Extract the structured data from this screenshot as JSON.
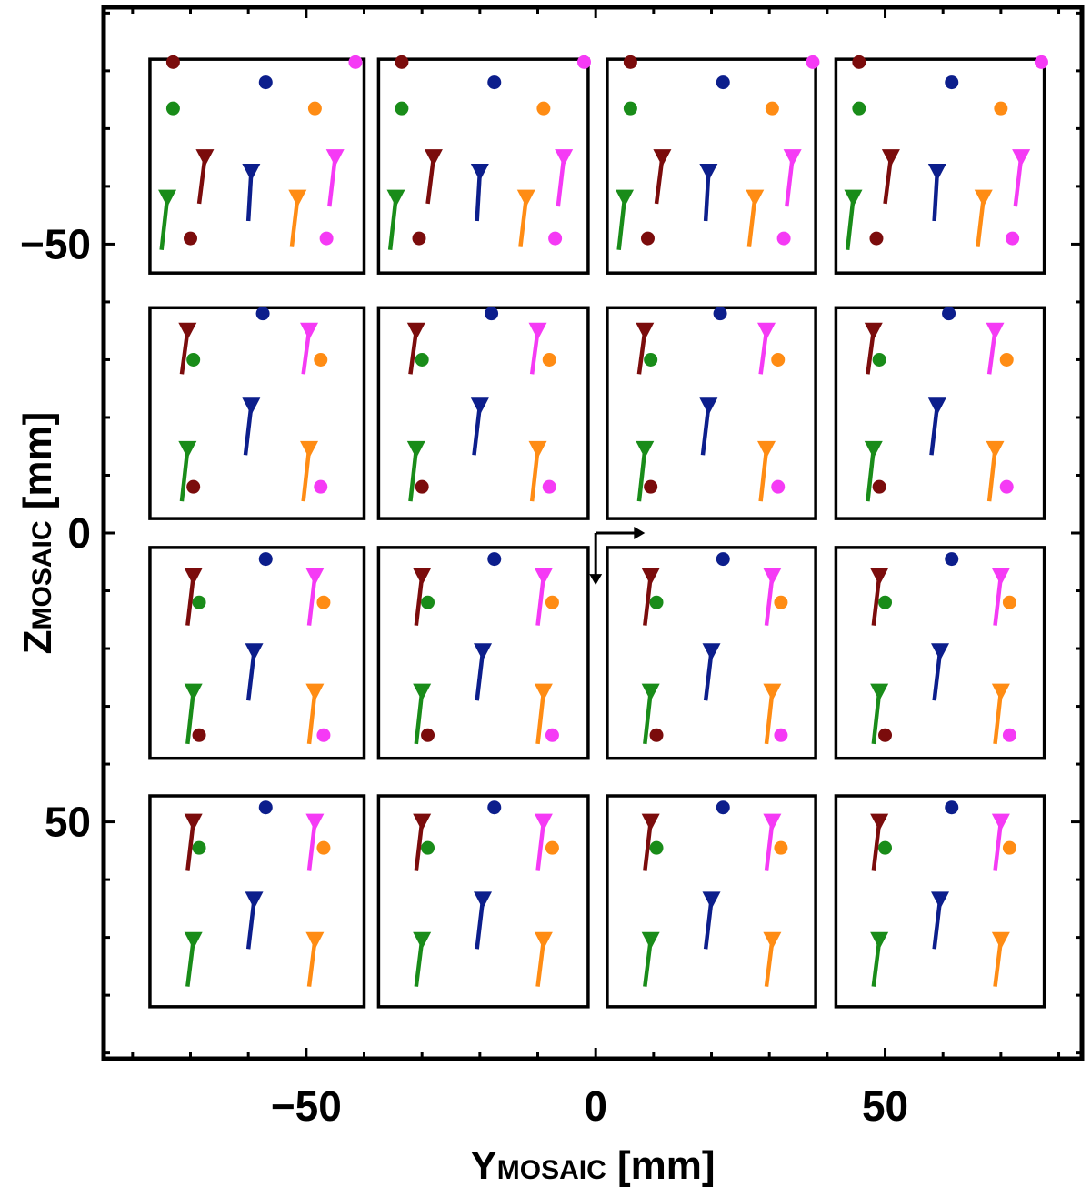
{
  "chart_data": {
    "type": "scatter",
    "title": "",
    "xlabel": {
      "main": "Y",
      "sub": "MOSAIC",
      "unit": " [mm]"
    },
    "ylabel": {
      "main": "Z",
      "sub": "MOSAIC",
      "unit": " [mm]"
    },
    "xlim": [
      -85,
      84
    ],
    "ylim": [
      -91,
      91
    ],
    "y_inverted": true,
    "grid": false,
    "legend": "none",
    "xticks": [
      {
        "value": -50,
        "label": "−50"
      },
      {
        "value": 0,
        "label": "0"
      },
      {
        "value": 50,
        "label": "50"
      }
    ],
    "yticks": [
      {
        "value": -50,
        "label": "−50"
      },
      {
        "value": 0,
        "label": "0"
      },
      {
        "value": 50,
        "label": "50"
      }
    ],
    "colors": {
      "c1": "#7b0c0c",
      "c2": "#0c1e8c",
      "c3": "#f53af5",
      "c4": "#198c19",
      "c5": "#ff8c14"
    },
    "origin_axes": {
      "y": 0,
      "z": 0,
      "arrow_y_length": 8.5,
      "arrow_z_length": 9
    },
    "tiles": {
      "columns": [
        [
          -77,
          -40
        ],
        [
          -37.5,
          -1.3
        ],
        [
          2,
          38
        ],
        [
          41.5,
          77.5
        ]
      ],
      "rows": [
        [
          -82,
          -45
        ],
        [
          -39,
          -2.5
        ],
        [
          2.5,
          39
        ],
        [
          45.5,
          82
        ]
      ]
    },
    "row_markers": [
      {
        "row": 0,
        "dots": [
          [
            4,
            -81.5,
            "c1"
          ],
          [
            20,
            -78,
            "c2"
          ],
          [
            35.5,
            -81.5,
            "c3"
          ],
          [
            4,
            -73.5,
            "c4"
          ],
          [
            28.5,
            -73.5,
            "c5"
          ],
          [
            7,
            -51,
            "c1"
          ],
          [
            30.5,
            -51,
            "c3"
          ]
        ],
        "pins": [
          [
            9.5,
            -65,
            8.5,
            -57,
            "c1"
          ],
          [
            17.5,
            -62.5,
            17,
            -54,
            "c2"
          ],
          [
            32,
            -65,
            31,
            -56.5,
            "c3"
          ],
          [
            3,
            -58,
            2,
            -49,
            "c4"
          ],
          [
            25.5,
            -58,
            24.5,
            -49.5,
            "c5"
          ]
        ]
      },
      {
        "row": 1,
        "dots": [
          [
            19.5,
            -38,
            "c2"
          ],
          [
            7.5,
            -30,
            "c4"
          ],
          [
            29.5,
            -30,
            "c5"
          ],
          [
            7.5,
            -8,
            "c1"
          ],
          [
            29.5,
            -8,
            "c3"
          ]
        ],
        "pins": [
          [
            6.5,
            -35,
            5.5,
            -27.5,
            "c1"
          ],
          [
            27.5,
            -35,
            26.5,
            -27.5,
            "c3"
          ],
          [
            17.5,
            -22,
            16.5,
            -13.5,
            "c2"
          ],
          [
            6.5,
            -14.5,
            5.5,
            -5.5,
            "c4"
          ],
          [
            27.5,
            -14.5,
            26.5,
            -5.5,
            "c5"
          ]
        ]
      },
      {
        "row": 2,
        "dots": [
          [
            20,
            4.5,
            "c2"
          ],
          [
            8.5,
            12,
            "c4"
          ],
          [
            30,
            12,
            "c5"
          ],
          [
            8.5,
            35,
            "c1"
          ],
          [
            30,
            35,
            "c3"
          ]
        ],
        "pins": [
          [
            7.5,
            7.5,
            6.5,
            16,
            "c1"
          ],
          [
            28.5,
            7.5,
            27.5,
            16,
            "c3"
          ],
          [
            18,
            20.5,
            17,
            29,
            "c2"
          ],
          [
            7.5,
            27.5,
            6.5,
            36.5,
            "c4"
          ],
          [
            28.5,
            27.5,
            27.5,
            36.5,
            "c5"
          ]
        ]
      },
      {
        "row": 3,
        "dots": [
          [
            20,
            47.5,
            "c2"
          ],
          [
            8.5,
            54.5,
            "c4"
          ],
          [
            30,
            54.5,
            "c5"
          ]
        ],
        "pins": [
          [
            7.5,
            50,
            6.5,
            58.5,
            "c1"
          ],
          [
            28.5,
            50,
            27.5,
            58.5,
            "c3"
          ],
          [
            18,
            63.5,
            17,
            72,
            "c2"
          ],
          [
            7.5,
            70.5,
            6.5,
            78.5,
            "c4"
          ],
          [
            28.5,
            70.5,
            27.5,
            78.5,
            "c5"
          ]
        ]
      }
    ],
    "column_offsets_y": [
      -77,
      -37.5,
      2,
      41.5
    ]
  }
}
